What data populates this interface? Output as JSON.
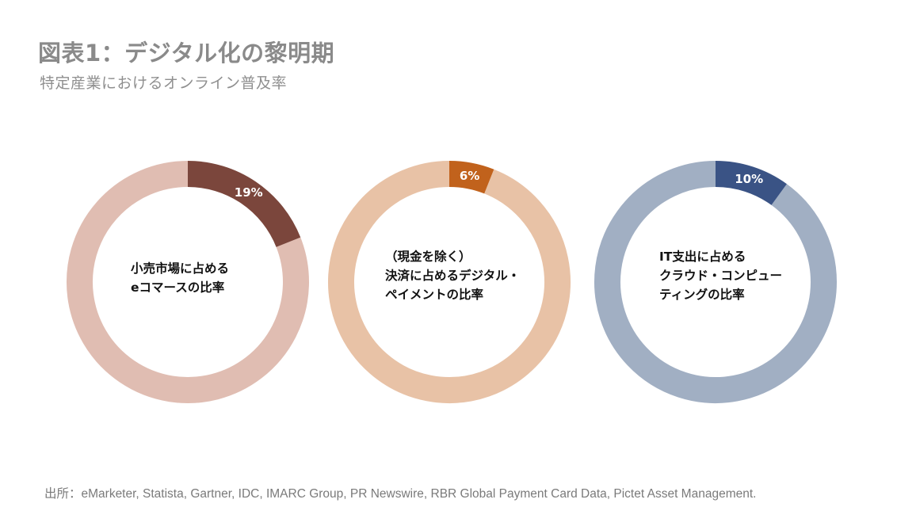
{
  "header": {
    "title": "図表1：デジタル化の黎明期",
    "subtitle": "特定産業におけるオンライン普及率"
  },
  "chart_data": [
    {
      "type": "pie",
      "variant": "donut",
      "center_label": [
        "小売市場に占める",
        "eコマースの比率"
      ],
      "values": [
        19,
        81
      ],
      "value_label": "19%",
      "colors": {
        "highlight": "#7b463c",
        "rest": "#e0bdb2"
      }
    },
    {
      "type": "pie",
      "variant": "donut",
      "center_label": [
        "（現金を除く）",
        "決済に占めるデジタル・",
        "ペイメントの比率"
      ],
      "values": [
        6,
        94
      ],
      "value_label": "6%",
      "colors": {
        "highlight": "#c1621c",
        "rest": "#e8c2a6"
      }
    },
    {
      "type": "pie",
      "variant": "donut",
      "center_label": [
        "IT支出に占める",
        "クラウド・コンピュー",
        "ティングの比率"
      ],
      "values": [
        10,
        90
      ],
      "value_label": "10%",
      "colors": {
        "highlight": "#3a5385",
        "rest": "#a1afc3"
      }
    }
  ],
  "footer": {
    "source": "出所：eMarketer, Statista, Gartner, IDC, IMARC Group, PR Newswire, RBR Global Payment Card Data, Pictet Asset Management."
  }
}
